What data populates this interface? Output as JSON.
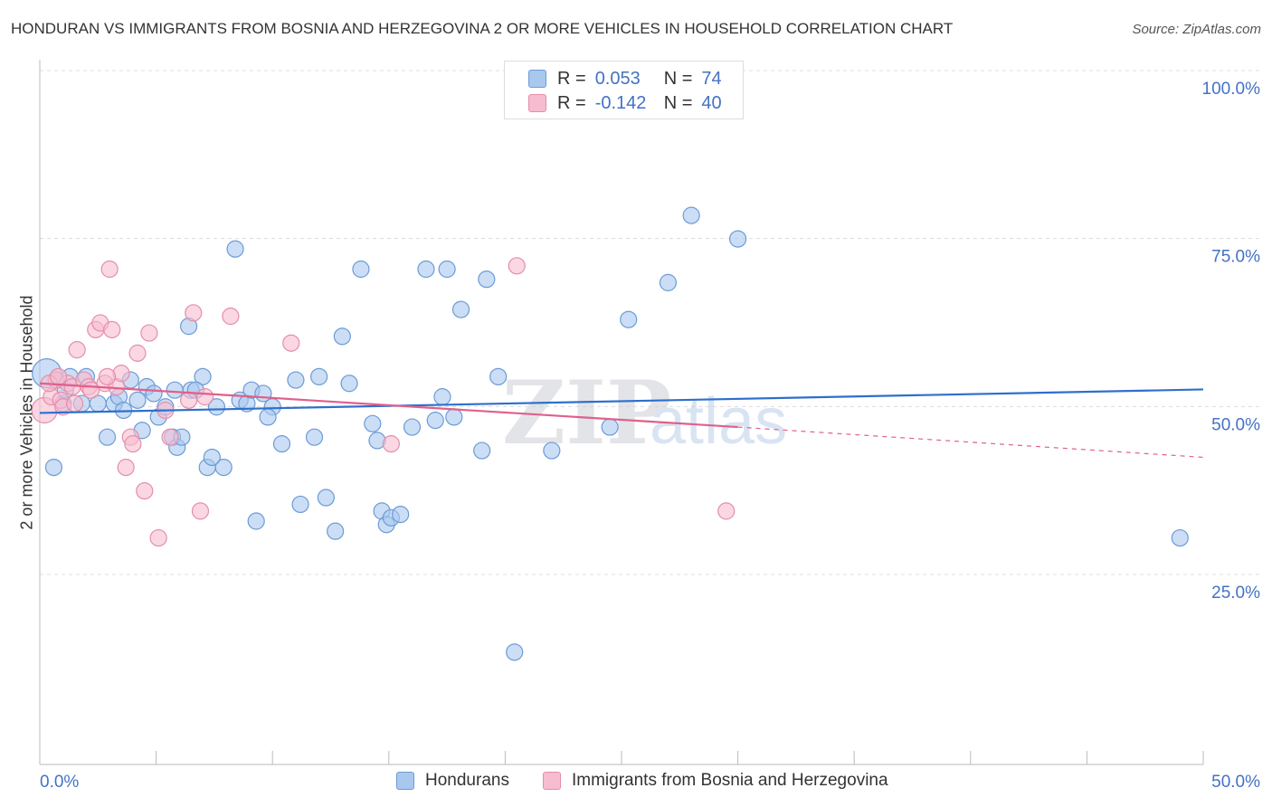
{
  "title": "HONDURAN VS IMMIGRANTS FROM BOSNIA AND HERZEGOVINA 2 OR MORE VEHICLES IN HOUSEHOLD CORRELATION CHART",
  "source": "Source: ZipAtlas.com",
  "watermark": {
    "zip": "ZIP",
    "atlas": "atlas"
  },
  "stats": {
    "hondurans": {
      "r_label": "R =",
      "r_value": "0.053",
      "n_label": "N =",
      "n_value": "74"
    },
    "bosnia": {
      "r_label": "R =",
      "r_value": "-0.142",
      "n_label": "N =",
      "n_value": "40"
    }
  },
  "legend": {
    "hondurans": "Hondurans",
    "bosnia": "Immigrants from Bosnia and Herzegovina"
  },
  "colors": {
    "blue_fill": "#a9c8ee",
    "blue_stroke": "#6c9bd6",
    "blue_line": "#2f6fcc",
    "pink_fill": "#f7bcd0",
    "pink_stroke": "#e58ea9",
    "pink_line": "#e0608a",
    "tick_text": "#4472c4",
    "grid": "#dcdcdc"
  },
  "chart_data": {
    "type": "scatter",
    "title": "HONDURAN VS IMMIGRANTS FROM BOSNIA AND HERZEGOVINA 2 OR MORE VEHICLES IN HOUSEHOLD CORRELATION CHART",
    "xlabel": "",
    "ylabel": "2 or more Vehicles in Household",
    "xlim": [
      0,
      50
    ],
    "ylim": [
      0,
      105
    ],
    "x_tick_labels": [
      "0.0%",
      "50.0%"
    ],
    "y_ticks": [
      25,
      50,
      75,
      100
    ],
    "y_tick_labels": [
      "25.0%",
      "50.0%",
      "75.0%",
      "100.0%"
    ],
    "grid": true,
    "legend_position": "bottom",
    "series": [
      {
        "name": "Hondurans",
        "color": "#a9c8ee",
        "trend": {
          "x0": 0,
          "y0": 51.6,
          "x1": 50,
          "y1": 55.1
        },
        "points": [
          [
            0.3,
            57.5
          ],
          [
            0.6,
            43.5
          ],
          [
            0.7,
            56.5
          ],
          [
            1.0,
            53.0
          ],
          [
            1.1,
            55.0
          ],
          [
            1.3,
            57.0
          ],
          [
            1.8,
            53.0
          ],
          [
            2.0,
            57.0
          ],
          [
            2.5,
            53.0
          ],
          [
            2.9,
            48.0
          ],
          [
            3.2,
            53.0
          ],
          [
            3.4,
            54.0
          ],
          [
            3.6,
            52.0
          ],
          [
            3.9,
            56.5
          ],
          [
            4.2,
            53.5
          ],
          [
            4.4,
            49.0
          ],
          [
            4.6,
            55.5
          ],
          [
            4.9,
            54.5
          ],
          [
            5.1,
            51.0
          ],
          [
            5.4,
            52.5
          ],
          [
            5.7,
            48.0
          ],
          [
            5.9,
            46.5
          ],
          [
            6.1,
            48.0
          ],
          [
            6.4,
            64.5
          ],
          [
            6.5,
            55.0
          ],
          [
            7.0,
            57.0
          ],
          [
            7.2,
            43.5
          ],
          [
            7.6,
            52.5
          ],
          [
            7.9,
            43.5
          ],
          [
            8.4,
            76.0
          ],
          [
            8.6,
            53.5
          ],
          [
            8.9,
            53.0
          ],
          [
            9.1,
            55.0
          ],
          [
            9.6,
            54.5
          ],
          [
            10.0,
            52.5
          ],
          [
            11.0,
            56.5
          ],
          [
            11.2,
            38.0
          ],
          [
            12.0,
            57.0
          ],
          [
            12.3,
            39.0
          ],
          [
            13.0,
            63.0
          ],
          [
            13.8,
            73.0
          ],
          [
            14.3,
            50.0
          ],
          [
            14.5,
            47.5
          ],
          [
            14.7,
            37.0
          ],
          [
            14.9,
            35.0
          ],
          [
            15.1,
            36.0
          ],
          [
            16.0,
            49.5
          ],
          [
            16.6,
            73.0
          ],
          [
            17.0,
            50.5
          ],
          [
            17.3,
            54.0
          ],
          [
            17.5,
            73.0
          ],
          [
            17.8,
            51.0
          ],
          [
            18.1,
            67.0
          ],
          [
            19.0,
            46.0
          ],
          [
            19.2,
            71.5
          ],
          [
            19.7,
            57.0
          ],
          [
            20.4,
            16.0
          ],
          [
            22.0,
            46.0
          ],
          [
            24.5,
            49.5
          ],
          [
            25.3,
            65.5
          ],
          [
            27.0,
            71.0
          ],
          [
            28.0,
            81.0
          ],
          [
            30.0,
            77.5
          ],
          [
            49.0,
            33.0
          ],
          [
            6.7,
            55.0
          ],
          [
            9.3,
            35.5
          ],
          [
            10.4,
            47.0
          ],
          [
            11.8,
            48.0
          ],
          [
            12.7,
            34.0
          ],
          [
            7.4,
            45.0
          ],
          [
            5.8,
            55.0
          ],
          [
            13.3,
            56.0
          ],
          [
            15.5,
            36.5
          ],
          [
            9.8,
            51.0
          ]
        ]
      },
      {
        "name": "Immigrants from Bosnia and Herzegovina",
        "color": "#f7bcd0",
        "trend": {
          "x0": 0,
          "y0": 56.0,
          "x1": 30,
          "y1": 49.5,
          "dash_to_x": 50,
          "dash_to_y": 45.0
        },
        "points": [
          [
            0.2,
            52.0
          ],
          [
            0.5,
            54.0
          ],
          [
            0.7,
            56.5
          ],
          [
            0.9,
            53.5
          ],
          [
            1.2,
            56.0
          ],
          [
            1.4,
            55.5
          ],
          [
            1.6,
            61.0
          ],
          [
            1.9,
            56.5
          ],
          [
            2.1,
            55.5
          ],
          [
            2.4,
            64.0
          ],
          [
            2.6,
            65.0
          ],
          [
            2.8,
            56.0
          ],
          [
            3.0,
            73.0
          ],
          [
            3.1,
            64.0
          ],
          [
            3.3,
            55.5
          ],
          [
            3.5,
            57.5
          ],
          [
            3.7,
            43.5
          ],
          [
            3.9,
            48.0
          ],
          [
            4.2,
            60.5
          ],
          [
            4.5,
            40.0
          ],
          [
            4.7,
            63.5
          ],
          [
            5.1,
            33.0
          ],
          [
            5.6,
            48.0
          ],
          [
            6.4,
            53.5
          ],
          [
            6.6,
            66.5
          ],
          [
            6.9,
            37.0
          ],
          [
            7.1,
            54.0
          ],
          [
            8.2,
            66.0
          ],
          [
            10.8,
            62.0
          ],
          [
            15.1,
            47.0
          ],
          [
            20.5,
            73.5
          ],
          [
            29.5,
            37.0
          ],
          [
            1.0,
            52.5
          ],
          [
            2.2,
            55.0
          ],
          [
            4.0,
            47.0
          ],
          [
            0.4,
            56.0
          ],
          [
            1.5,
            53.0
          ],
          [
            2.9,
            57.0
          ],
          [
            5.4,
            52.0
          ],
          [
            0.8,
            57.0
          ]
        ]
      }
    ]
  }
}
